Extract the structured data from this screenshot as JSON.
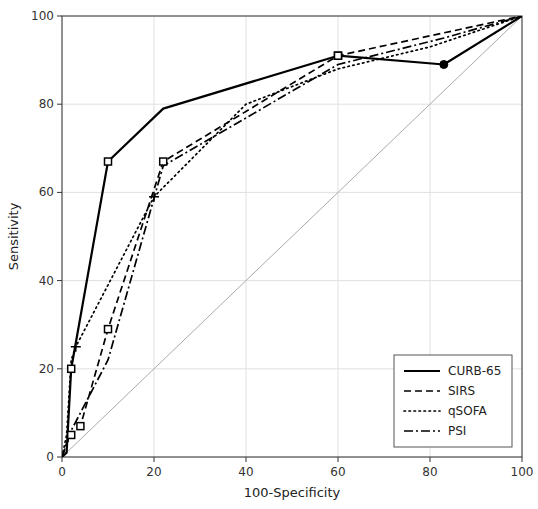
{
  "chart_data": {
    "type": "line",
    "xlabel": "100-Specificity",
    "ylabel": "Sensitivity",
    "xlim": [
      0,
      100
    ],
    "ylim": [
      0,
      100
    ],
    "xticks": [
      0,
      20,
      40,
      60,
      80,
      100
    ],
    "yticks": [
      0,
      20,
      40,
      60,
      80,
      100
    ],
    "grid": true,
    "legend": "lower right",
    "reference_line": {
      "x": [
        0,
        100
      ],
      "values": [
        0,
        100
      ],
      "color": "#aaaaaa"
    },
    "series": [
      {
        "name": "CURB-65",
        "color": "#000000",
        "line_style": "solid",
        "marker": "square",
        "x": [
          0,
          1,
          2,
          10,
          22,
          60,
          83,
          100
        ],
        "values": [
          0,
          1,
          20,
          67,
          79,
          91,
          89,
          100
        ],
        "marker_points": {
          "x": [
            2,
            10,
            60,
            83
          ],
          "values": [
            20,
            67,
            91,
            89
          ],
          "filled": [
            false,
            false,
            false,
            true
          ]
        }
      },
      {
        "name": "SIRS",
        "color": "#000000",
        "line_style": "dashed",
        "marker": "square",
        "x": [
          0,
          1,
          2,
          4,
          10,
          22,
          60,
          100
        ],
        "values": [
          0,
          3,
          5,
          7,
          29,
          67,
          91,
          100
        ],
        "marker_points": {
          "x": [
            2,
            4,
            10,
            22,
            60
          ],
          "values": [
            5,
            7,
            29,
            67,
            91
          ],
          "filled": [
            false,
            false,
            false,
            false,
            false
          ]
        }
      },
      {
        "name": "qSOFA",
        "color": "#000000",
        "line_style": "dotted",
        "marker": "plus",
        "x": [
          0,
          1,
          2,
          3,
          20,
          40,
          60,
          80,
          100
        ],
        "values": [
          0,
          5,
          22,
          25,
          59,
          80,
          88,
          93,
          100
        ],
        "marker_points": {
          "x": [
            3,
            20
          ],
          "values": [
            25,
            59
          ],
          "filled": [
            false,
            false
          ]
        }
      },
      {
        "name": "PSI",
        "color": "#000000",
        "line_style": "dashdot",
        "x": [
          0,
          1,
          2,
          10,
          22,
          60,
          83,
          100
        ],
        "values": [
          0,
          3,
          6,
          22,
          66,
          89,
          95,
          100
        ]
      }
    ]
  }
}
